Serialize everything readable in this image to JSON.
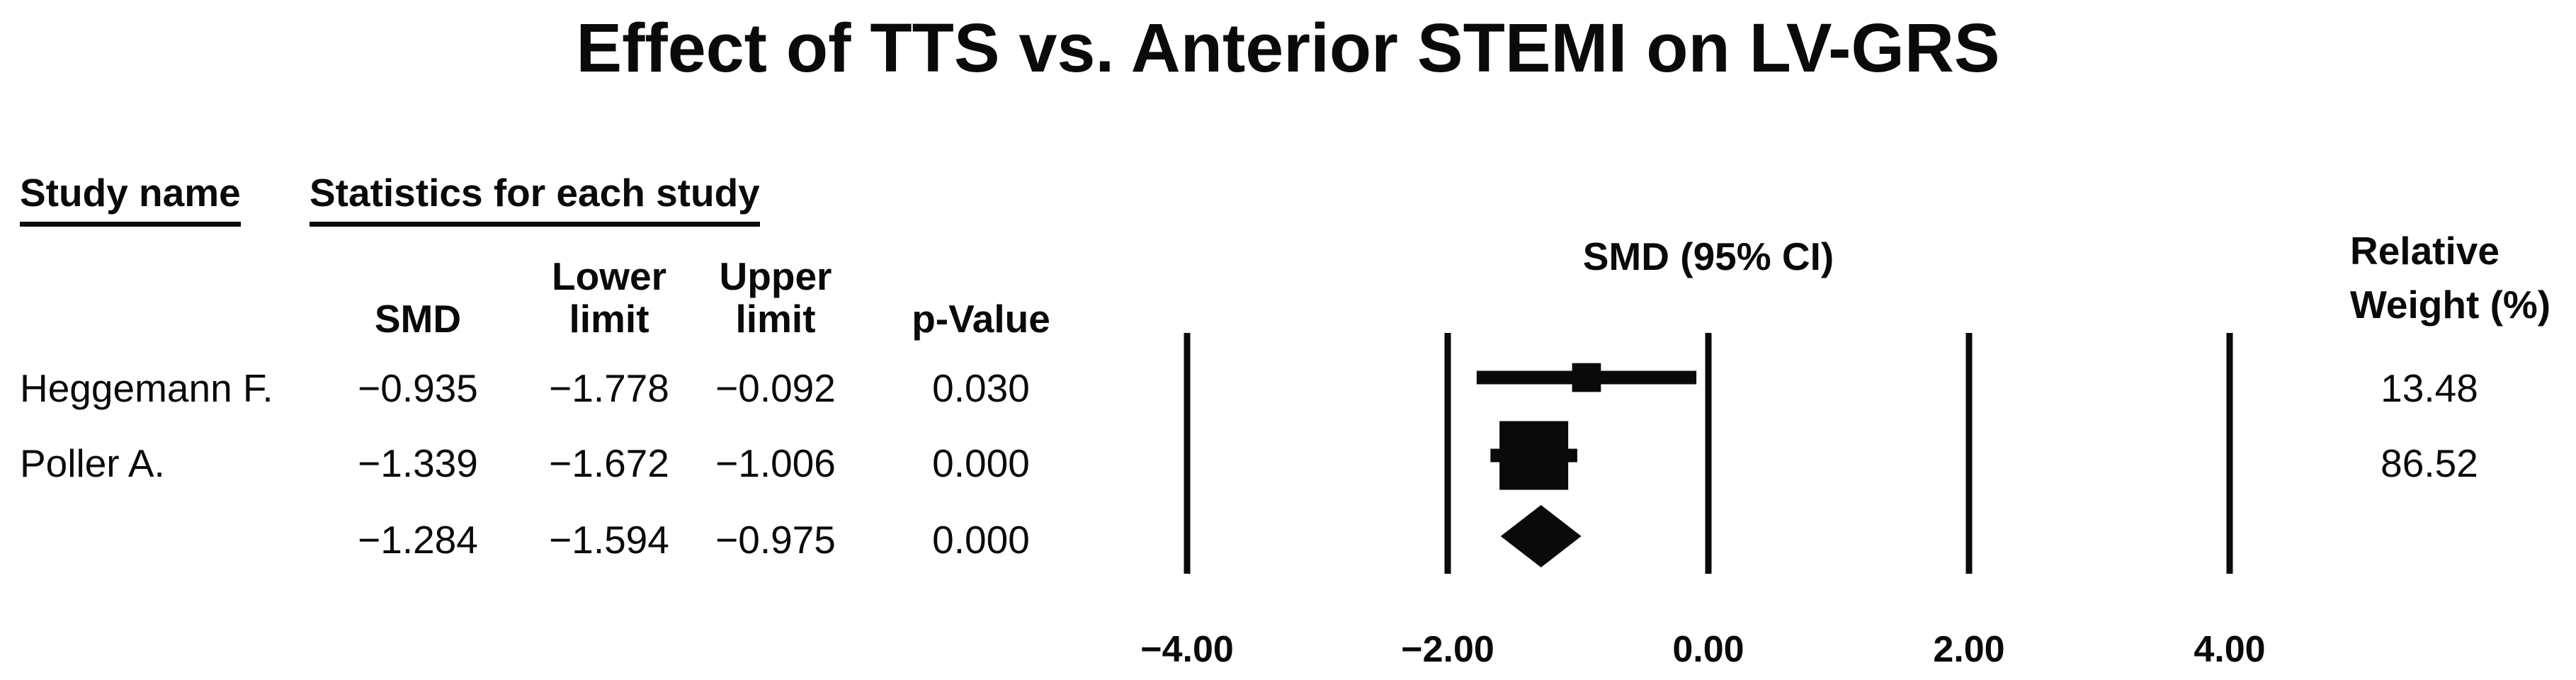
{
  "title": "Effect of TTS vs. Anterior STEMI on LV-GRS",
  "table": {
    "group_header_study": "Study name",
    "group_header_stats": "Statistics for each study",
    "col_smd": "SMD",
    "col_lower": "Lower\nlimit",
    "col_upper": "Upper\nlimit",
    "col_pvalue": "p-Value",
    "rows": [
      {
        "study": "Heggemann F.",
        "smd": "−0.935",
        "lower": "−1.778",
        "upper": "−0.092",
        "p": "0.030",
        "weight": "13.48"
      },
      {
        "study": "Poller A.",
        "smd": "−1.339",
        "lower": "−1.672",
        "upper": "−1.006",
        "p": "0.000",
        "weight": "86.52"
      },
      {
        "study": "",
        "smd": "−1.284",
        "lower": "−1.594",
        "upper": "−0.975",
        "p": "0.000",
        "weight": ""
      }
    ]
  },
  "plot": {
    "effect_header": "SMD (95% CI)",
    "weight_header": "Relative\nWeight (%)"
  },
  "chart_data": {
    "type": "forest",
    "title": "Effect of TTS vs. Anterior STEMI on LV-GRS",
    "effect_measure": "SMD",
    "effect_label": "SMD (95% CI)",
    "x_ticks": [
      -4,
      -2,
      0,
      2,
      4
    ],
    "x_tick_labels": [
      "−4.00",
      "−2.00",
      "0.00",
      "2.00",
      "4.00"
    ],
    "xlim": [
      -5,
      5
    ],
    "grid": true,
    "marker_color": "#0a0a0a",
    "studies": [
      {
        "name": "Heggemann F.",
        "smd": -0.935,
        "ci_lower": -1.778,
        "ci_upper": -0.092,
        "p_value": 0.03,
        "relative_weight_pct": 13.48
      },
      {
        "name": "Poller A.",
        "smd": -1.339,
        "ci_lower": -1.672,
        "ci_upper": -1.006,
        "p_value": 0.0,
        "relative_weight_pct": 86.52
      }
    ],
    "overall": {
      "smd": -1.284,
      "ci_lower": -1.594,
      "ci_upper": -0.975,
      "p_value": 0.0
    }
  }
}
